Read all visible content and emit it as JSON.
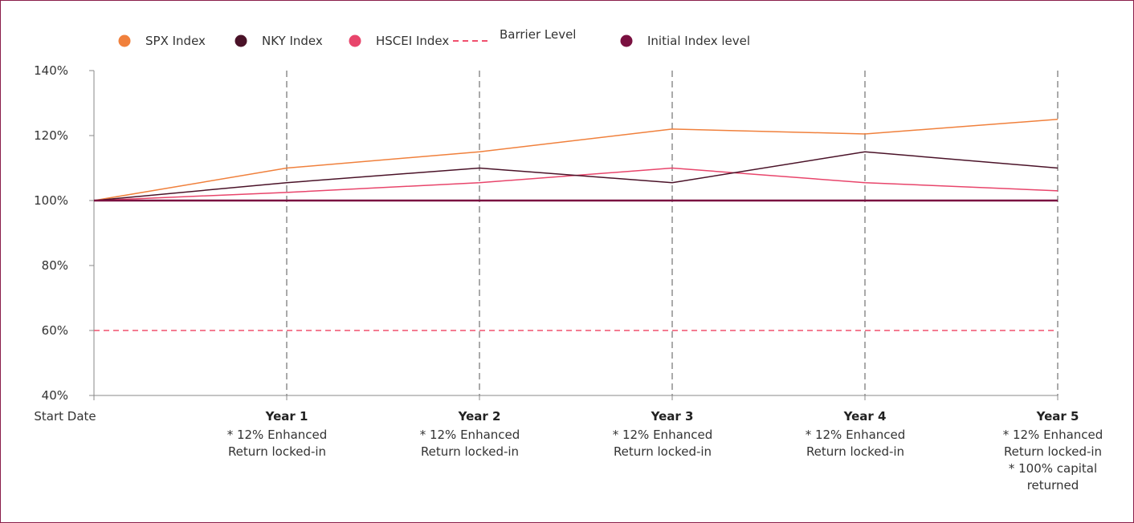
{
  "chart_data": {
    "type": "line",
    "categories": [
      "Start Date",
      "Year 1",
      "Year 2",
      "Year 3",
      "Year 4",
      "Year 5"
    ],
    "category_notes": [
      [],
      [
        "* 12% Enhanced",
        "Return locked-in"
      ],
      [
        "* 12% Enhanced",
        "Return locked-in"
      ],
      [
        "* 12% Enhanced",
        "Return locked-in"
      ],
      [
        "* 12% Enhanced",
        "Return locked-in"
      ],
      [
        "* 12% Enhanced",
        "Return locked-in",
        "* 100% capital",
        "returned"
      ]
    ],
    "ylim": [
      40,
      140
    ],
    "y_ticks": [
      40,
      60,
      80,
      100,
      120,
      140
    ],
    "y_tick_labels": [
      "40%",
      "60%",
      "80%",
      "100%",
      "120%",
      "140%"
    ],
    "legend_position": "top-left",
    "vertical_dashed_gridlines": true,
    "series": [
      {
        "name": "SPX Index",
        "color": "#f0803c",
        "style": "solid",
        "marker": "circle",
        "values": [
          100,
          110,
          115,
          122,
          120.5,
          125
        ]
      },
      {
        "name": "NKY Index",
        "color": "#4a1228",
        "style": "solid",
        "marker": "circle",
        "values": [
          100,
          105.5,
          110,
          105.5,
          115,
          110
        ]
      },
      {
        "name": "HSCEI Index",
        "color": "#e8456b",
        "style": "solid",
        "marker": "circle",
        "values": [
          100,
          102.5,
          105.5,
          110,
          105.5,
          103
        ]
      },
      {
        "name": "Barrier Level",
        "color": "#f0506e",
        "style": "dashed",
        "marker": "dash",
        "values": [
          60,
          60,
          60,
          60,
          60,
          60
        ]
      },
      {
        "name": "Initial Index level",
        "color": "#7a1040",
        "style": "solid",
        "marker": "circle",
        "values": [
          100,
          100,
          100,
          100,
          100,
          100
        ]
      }
    ]
  }
}
